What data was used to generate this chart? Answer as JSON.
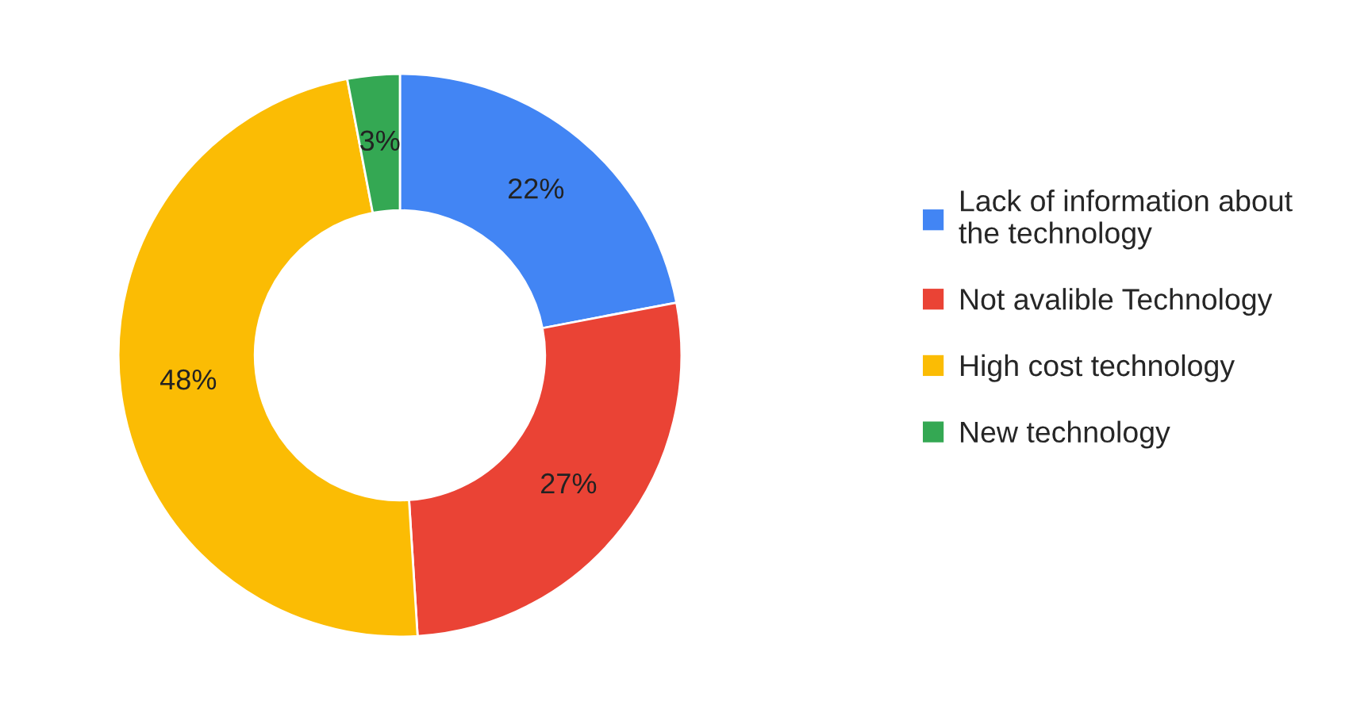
{
  "chart_data": {
    "type": "donut",
    "categories": [
      "Lack of information about\nthe technology",
      "Not avalible Technology",
      "High cost technology",
      "New technology"
    ],
    "values": [
      22,
      27,
      48,
      3
    ],
    "colors": [
      "#4285f4",
      "#ea4335",
      "#fbbc04",
      "#34a853"
    ],
    "value_labels": [
      "22%",
      "27%",
      "48%",
      "3%"
    ],
    "legend": "right"
  }
}
